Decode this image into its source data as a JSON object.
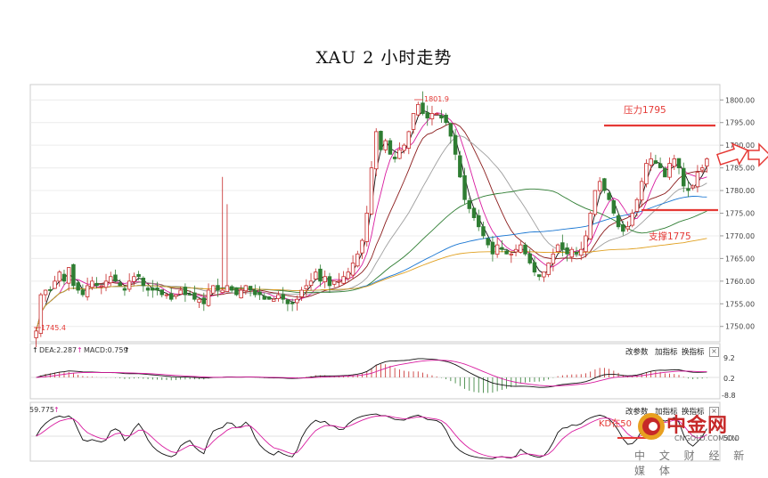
{
  "title": "XAU 2 小时走势",
  "chart_data": {
    "type": "candlestick",
    "title": "XAU 2 小时走势",
    "timeframe": "2 小时",
    "y_axis": {
      "ticks": [
        "1800.00",
        "1795.00",
        "1790.00",
        "1785.00",
        "1780.00",
        "1775.00",
        "1770.00",
        "1765.00",
        "1760.00",
        "1755.00",
        "1750.00"
      ],
      "ylim": [
        1747,
        1803
      ]
    },
    "closes": [
      1749,
      1757,
      1758,
      1758,
      1760,
      1762,
      1760,
      1763,
      1759,
      1758,
      1757,
      1759,
      1760,
      1759,
      1759,
      1760,
      1761,
      1760,
      1759,
      1758,
      1760,
      1761,
      1761,
      1759,
      1758,
      1758,
      1758,
      1757,
      1757,
      1756,
      1757,
      1758,
      1757,
      1757,
      1756,
      1756,
      1755,
      1758,
      1759,
      1758,
      1758,
      1759,
      1758,
      1757,
      1758,
      1759,
      1758,
      1757,
      1757,
      1756,
      1756,
      1756,
      1757,
      1756,
      1755,
      1755,
      1756,
      1758,
      1759,
      1760,
      1762,
      1760,
      1761,
      1759,
      1760,
      1760,
      1761,
      1762,
      1764,
      1766,
      1769,
      1775,
      1785,
      1793,
      1789,
      1791,
      1788,
      1787,
      1789,
      1790,
      1793,
      1797,
      1799,
      1797,
      1796,
      1797,
      1797,
      1796,
      1795,
      1792,
      1788,
      1783,
      1778,
      1776,
      1774,
      1772,
      1770,
      1768,
      1766,
      1768,
      1767,
      1766,
      1766,
      1767,
      1768,
      1766,
      1764,
      1762,
      1761,
      1762,
      1764,
      1766,
      1768,
      1767,
      1766,
      1767,
      1766,
      1767,
      1770,
      1775,
      1780,
      1782,
      1780,
      1778,
      1775,
      1772,
      1771,
      1772,
      1775,
      1778,
      1782,
      1786,
      1787,
      1786,
      1785,
      1783,
      1786,
      1787,
      1785,
      1781,
      1780,
      1781,
      1784,
      1785,
      1787
    ],
    "annotations": {
      "high": "1801.9",
      "low": "1745.4",
      "resistance": "压力1795",
      "support": "支撑1775"
    },
    "moving_average_colors": [
      "#111111",
      "#d81b9f",
      "#8b1c1c",
      "#9e9e9e",
      "#2e7d32",
      "#1976d2",
      "#e0a020"
    ],
    "macd_panel": {
      "dea_label": "DEA:2.287",
      "macd_label": "MACD:0.759",
      "ticks": [
        "9.2",
        "0.2",
        "-8.8"
      ]
    },
    "kd_panel": {
      "value_label": "59.775",
      "ticks": [
        "50.0"
      ],
      "note_prefix": "KD在50"
    },
    "panel_controls": [
      "改参数",
      "加指标",
      "换指标"
    ]
  },
  "watermark": {
    "main": "中金网",
    "domain": "CNGOLD.COM.CN",
    "sub": "中 文 财 经 新 媒 体"
  }
}
